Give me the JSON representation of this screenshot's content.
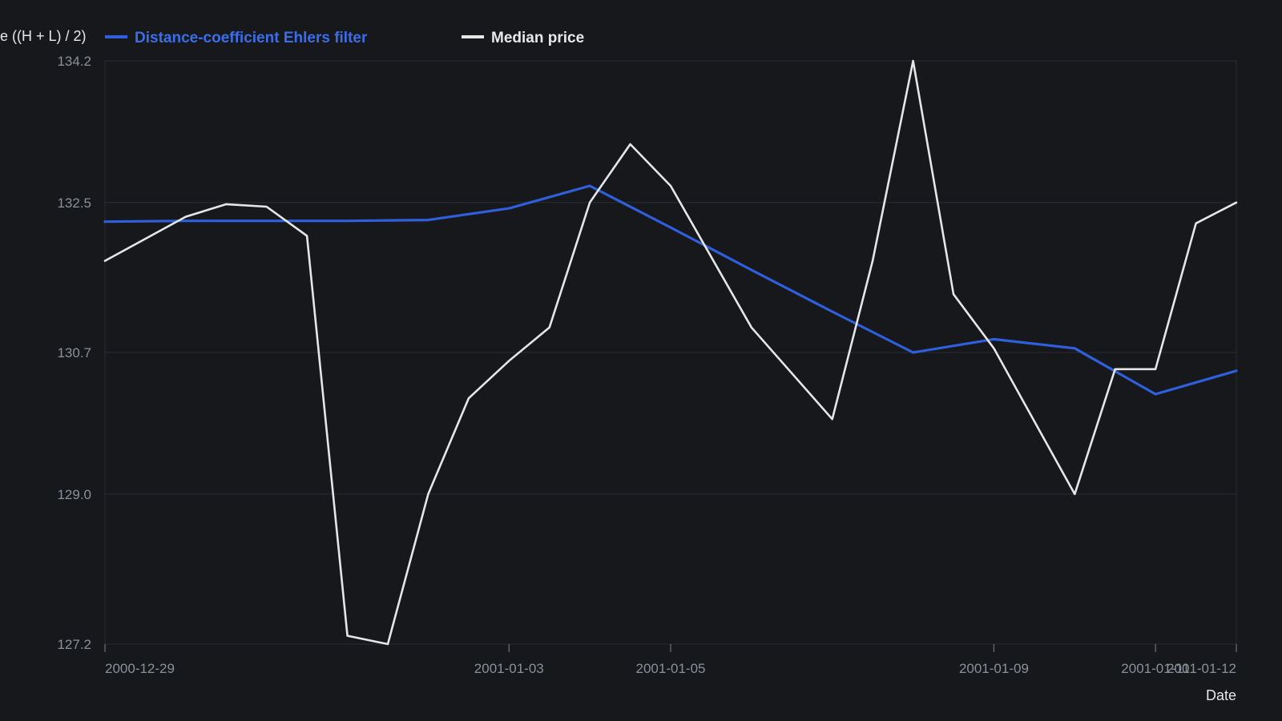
{
  "chart_data": {
    "type": "line",
    "title": "",
    "xlabel": "Date",
    "ylabel": "e ((H + L) / 2)",
    "ylim": [
      127.2,
      134.2
    ],
    "yticks": [
      "127.2",
      "129.0",
      "130.7",
      "132.5",
      "134.2"
    ],
    "xlim": [
      "2000-12-29",
      "2001-01-12"
    ],
    "xticks": [
      "2000-12-29",
      "2001-01-03",
      "2001-01-05",
      "2001-01-09",
      "2001-01-11",
      "2001-01-12"
    ],
    "grid": "horizontal",
    "legend_position": "top-left",
    "series": [
      {
        "name": "Distance-coefficient Ehlers filter",
        "color": "#2f5fdc",
        "points": [
          [
            "2000-12-29",
            132.27
          ],
          [
            "2000-12-30",
            132.28
          ],
          [
            "2000-12-31",
            132.28
          ],
          [
            "2001-01-01",
            132.28
          ],
          [
            "2001-01-02",
            132.29
          ],
          [
            "2001-01-03",
            132.43
          ],
          [
            "2001-01-04",
            132.7
          ],
          [
            "2001-01-05",
            132.2
          ],
          [
            "2001-01-06",
            131.69
          ],
          [
            "2001-01-07",
            131.19
          ],
          [
            "2001-01-08",
            130.7
          ],
          [
            "2001-01-09",
            130.86
          ],
          [
            "2001-01-10",
            130.75
          ],
          [
            "2001-01-11",
            130.2
          ],
          [
            "2001-01-12",
            130.48
          ]
        ]
      },
      {
        "name": "Median price",
        "color": "#e6e6e6",
        "points": [
          [
            "2000-12-29",
            131.8
          ],
          [
            "2000-12-30",
            132.33
          ],
          [
            "2000-12-30T12:00",
            132.48
          ],
          [
            "2000-12-31",
            132.45
          ],
          [
            "2000-12-31T12:00",
            132.1
          ],
          [
            "2001-01-01",
            127.3
          ],
          [
            "2001-01-01T12:00",
            127.2
          ],
          [
            "2001-01-02",
            129.0
          ],
          [
            "2001-01-02T12:00",
            130.15
          ],
          [
            "2001-01-03",
            130.6
          ],
          [
            "2001-01-03T12:00",
            131.0
          ],
          [
            "2001-01-04",
            132.5
          ],
          [
            "2001-01-04T12:00",
            133.2
          ],
          [
            "2001-01-05",
            132.7
          ],
          [
            "2001-01-06",
            131.0
          ],
          [
            "2001-01-07",
            129.9
          ],
          [
            "2001-01-07T12:00",
            131.8
          ],
          [
            "2001-01-08",
            134.2
          ],
          [
            "2001-01-08T12:00",
            131.4
          ],
          [
            "2001-01-09",
            130.75
          ],
          [
            "2001-01-10",
            129.0
          ],
          [
            "2001-01-10T12:00",
            130.5
          ],
          [
            "2001-01-11",
            130.5
          ],
          [
            "2001-01-11T12:00",
            132.25
          ],
          [
            "2001-01-12",
            132.5
          ]
        ]
      }
    ]
  }
}
